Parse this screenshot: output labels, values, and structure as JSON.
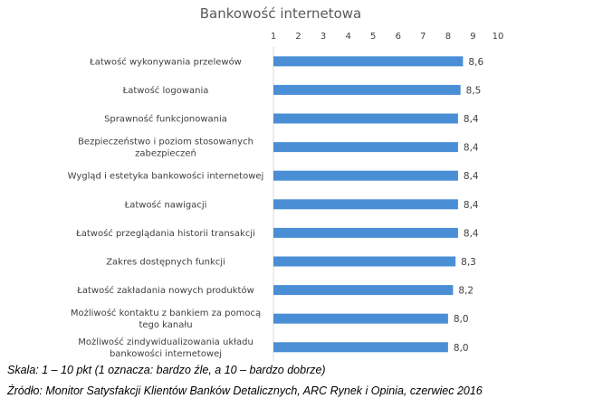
{
  "chart_data": {
    "type": "bar",
    "orientation": "horizontal",
    "title": "Bankowość internetowa",
    "xlim": [
      1,
      10
    ],
    "ticks": [
      "1",
      "2",
      "3",
      "4",
      "5",
      "6",
      "7",
      "8",
      "9",
      "10"
    ],
    "bar_color": "#4a8fd6",
    "categories": [
      [
        "Łatwość wykonywania przelewów"
      ],
      [
        "Łatwość logowania"
      ],
      [
        "Sprawność funkcjonowania"
      ],
      [
        "Bezpieczeństwo i poziom stosowanych",
        "zabezpieczeń"
      ],
      [
        "Wygląd i estetyka bankowości internetowej"
      ],
      [
        "Łatwość nawigacji"
      ],
      [
        "Łatwość przeglądania historii transakcji"
      ],
      [
        "Zakres dostępnych funkcji"
      ],
      [
        "Łatwość zakładania nowych produktów"
      ],
      [
        "Możliwość kontaktu z bankiem za pomocą",
        "tego kanału"
      ],
      [
        "Możliwość zindywidualizowania układu",
        "bankowości internetowej"
      ]
    ],
    "values": [
      8.6,
      8.5,
      8.4,
      8.4,
      8.4,
      8.4,
      8.4,
      8.3,
      8.2,
      8.0,
      8.0
    ],
    "value_labels": [
      "8,6",
      "8,5",
      "8,4",
      "8,4",
      "8,4",
      "8,4",
      "8,4",
      "8,3",
      "8,2",
      "8,0",
      "8,0"
    ]
  },
  "notes": {
    "scale": "Skala: 1 – 10 pkt (1 oznacza: bardzo źle, a 10 – bardzo dobrze)",
    "source": "Źródło: Monitor Satysfakcji Klientów Banków Detalicznych, ARC Rynek i Opinia, czerwiec 2016"
  }
}
